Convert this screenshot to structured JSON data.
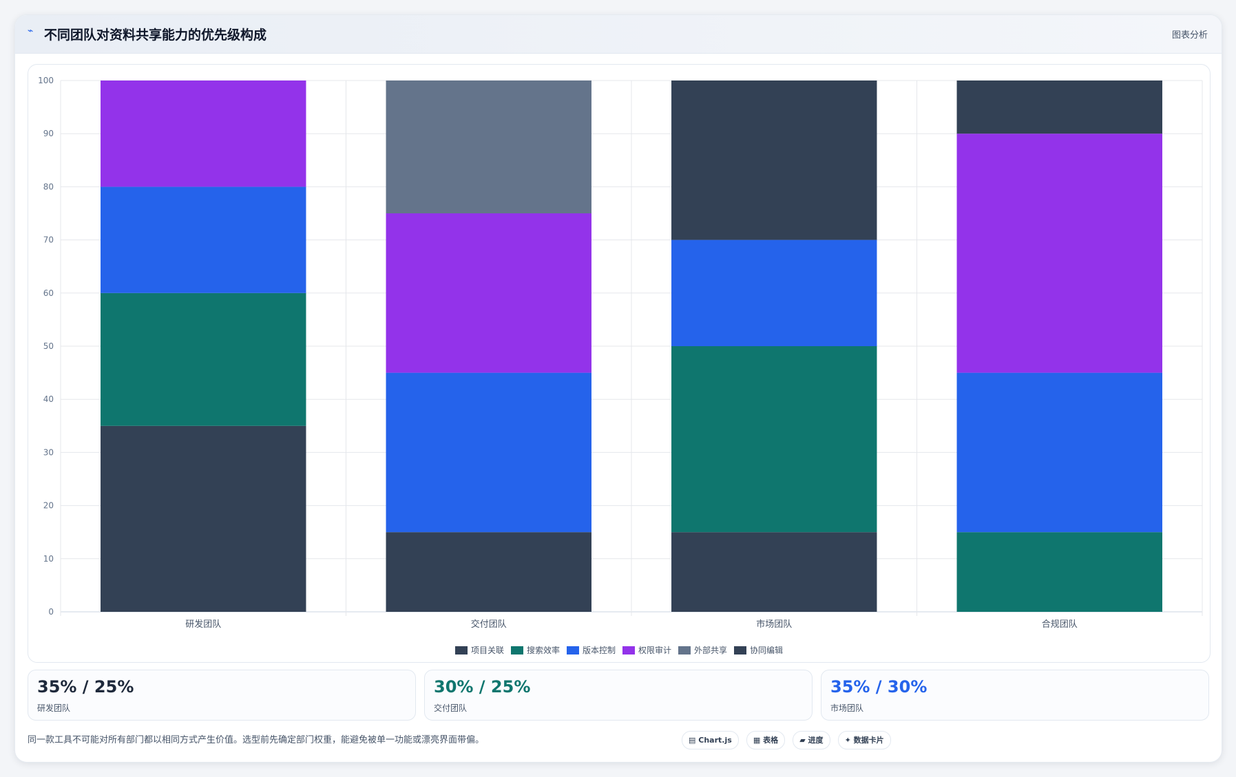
{
  "header": {
    "icon": "trend-icon",
    "title": "不同团队对资料共享能力的优先级构成",
    "right_label": "图表分析"
  },
  "colors": {
    "项目关联": "#334155",
    "搜索效率": "#0f766e",
    "版本控制": "#2563eb",
    "权限审计": "#9333ea",
    "外部共享": "#64748b",
    "协同编辑": "#334155"
  },
  "chart_data": {
    "type": "bar",
    "stacked": true,
    "categories": [
      "研发团队",
      "交付团队",
      "市场团队",
      "合规团队"
    ],
    "series": [
      {
        "name": "项目关联",
        "values": [
          35,
          15,
          15,
          0
        ]
      },
      {
        "name": "搜索效率",
        "values": [
          25,
          0,
          35,
          15
        ]
      },
      {
        "name": "版本控制",
        "values": [
          20,
          30,
          20,
          30
        ]
      },
      {
        "name": "权限审计",
        "values": [
          20,
          30,
          0,
          45
        ]
      },
      {
        "name": "外部共享",
        "values": [
          0,
          25,
          0,
          0
        ]
      },
      {
        "name": "协同编辑",
        "values": [
          0,
          0,
          30,
          10
        ]
      }
    ],
    "ylim": [
      0,
      100
    ],
    "yticks": [
      0,
      10,
      20,
      30,
      40,
      50,
      60,
      70,
      80,
      90,
      100
    ],
    "grid": true,
    "legend_position": "bottom"
  },
  "cards": [
    {
      "value": "35% / 25%",
      "label": "研发团队",
      "color": "#1e293b"
    },
    {
      "value": "30% / 25%",
      "label": "交付团队",
      "color": "#0f766e"
    },
    {
      "value": "35% / 30%",
      "label": "市场团队",
      "color": "#2563eb"
    }
  ],
  "footnote": "同一款工具不可能对所有部门都以相同方式产生价值。选型前先确定部门权重，能避免被单一功能或漂亮界面带偏。",
  "chips": [
    {
      "icon": "chart-icon",
      "glyph": "▤",
      "label": "Chart.js"
    },
    {
      "icon": "table-icon",
      "glyph": "▦",
      "label": "表格"
    },
    {
      "icon": "progress-icon",
      "glyph": "▰",
      "label": "进度"
    },
    {
      "icon": "card-icon",
      "glyph": "✦",
      "label": "数据卡片"
    }
  ]
}
